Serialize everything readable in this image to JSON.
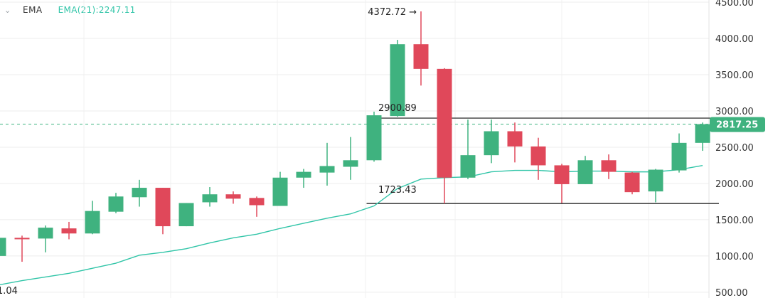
{
  "indicator": {
    "name": "EMA",
    "value_label": "EMA(21):2247.11",
    "color": "#31c5a8"
  },
  "chart_data": {
    "type": "candlestick",
    "y_axis": {
      "ticks": [
        500,
        1000,
        1500,
        2000,
        2500,
        3000,
        3500,
        4000,
        4500
      ],
      "tick_labels": [
        "500.00",
        "1000.00",
        "1500.00",
        "2000.00",
        "2500.00",
        "3000.00",
        "3500.00",
        "4000.00",
        "4500.00"
      ],
      "range": [
        420,
        4530
      ],
      "position": "right"
    },
    "colors": {
      "up": "#3fb27f",
      "down": "#e0485a",
      "current_price": "#3fb27f",
      "grid": "#ececec"
    },
    "current_price": {
      "value": 2817.25,
      "label": "2817.25"
    },
    "candles": [
      {
        "o": 1000,
        "c": 1250,
        "h": 1270,
        "l": 990
      },
      {
        "o": 1250,
        "c": 1230,
        "h": 1280,
        "l": 920
      },
      {
        "o": 1240,
        "c": 1390,
        "h": 1420,
        "l": 1050
      },
      {
        "o": 1380,
        "c": 1310,
        "h": 1470,
        "l": 1230
      },
      {
        "o": 1310,
        "c": 1620,
        "h": 1760,
        "l": 1300
      },
      {
        "o": 1610,
        "c": 1820,
        "h": 1870,
        "l": 1590
      },
      {
        "o": 1810,
        "c": 1940,
        "h": 2050,
        "l": 1680
      },
      {
        "o": 1940,
        "c": 1410,
        "h": 1940,
        "l": 1300
      },
      {
        "o": 1410,
        "c": 1730,
        "h": 1730,
        "l": 1410
      },
      {
        "o": 1740,
        "c": 1850,
        "h": 1950,
        "l": 1680
      },
      {
        "o": 1850,
        "c": 1790,
        "h": 1890,
        "l": 1720
      },
      {
        "o": 1800,
        "c": 1700,
        "h": 1820,
        "l": 1540
      },
      {
        "o": 1690,
        "c": 2080,
        "h": 2160,
        "l": 1690
      },
      {
        "o": 2080,
        "c": 2160,
        "h": 2200,
        "l": 1940
      },
      {
        "o": 2150,
        "c": 2240,
        "h": 2560,
        "l": 1970
      },
      {
        "o": 2230,
        "c": 2320,
        "h": 2640,
        "l": 2050
      },
      {
        "o": 2320,
        "c": 2940,
        "h": 2990,
        "l": 2300
      },
      {
        "o": 2930,
        "c": 3920,
        "h": 3980,
        "l": 2920
      },
      {
        "o": 3920,
        "c": 3580,
        "h": 4372.72,
        "l": 3350
      },
      {
        "o": 3580,
        "c": 2080,
        "h": 3590,
        "l": 1723.43
      },
      {
        "o": 2080,
        "c": 2390,
        "h": 2880,
        "l": 2060
      },
      {
        "o": 2390,
        "c": 2720,
        "h": 2880,
        "l": 2280
      },
      {
        "o": 2720,
        "c": 2510,
        "h": 2840,
        "l": 2290
      },
      {
        "o": 2510,
        "c": 2250,
        "h": 2630,
        "l": 2050
      },
      {
        "o": 2250,
        "c": 1990,
        "h": 2270,
        "l": 1730
      },
      {
        "o": 1990,
        "c": 2320,
        "h": 2380,
        "l": 1990
      },
      {
        "o": 2320,
        "c": 2160,
        "h": 2400,
        "l": 2060
      },
      {
        "o": 2150,
        "c": 1880,
        "h": 2160,
        "l": 1850
      },
      {
        "o": 1890,
        "c": 2190,
        "h": 2200,
        "l": 1740
      },
      {
        "o": 2180,
        "c": 2560,
        "h": 2690,
        "l": 2150
      },
      {
        "o": 2560,
        "c": 2817.25,
        "h": 2840,
        "l": 2450
      }
    ],
    "ema": {
      "name": "EMA(21)",
      "values": [
        600,
        660,
        710,
        760,
        830,
        900,
        1010,
        1050,
        1100,
        1180,
        1250,
        1300,
        1380,
        1450,
        1520,
        1580,
        1690,
        1930,
        2060,
        2080,
        2090,
        2160,
        2180,
        2180,
        2160,
        2170,
        2170,
        2160,
        2160,
        2190,
        2247.11
      ]
    },
    "annotations": [
      {
        "candle": 18,
        "value": 4372.72,
        "label": "4372.72 →"
      },
      {
        "candle": 16,
        "value": 2900.89,
        "label": "2900.89"
      },
      {
        "candle": 16,
        "value": 1723.43,
        "label": "1723.43"
      },
      {
        "candle": 0,
        "value": 510,
        "label": "1.04"
      }
    ],
    "range_lines": [
      {
        "value": 2900.89,
        "from_candle": 16,
        "to_candle": 32
      },
      {
        "value": 1723.43,
        "from_candle": 16,
        "to_candle": 31
      }
    ]
  }
}
